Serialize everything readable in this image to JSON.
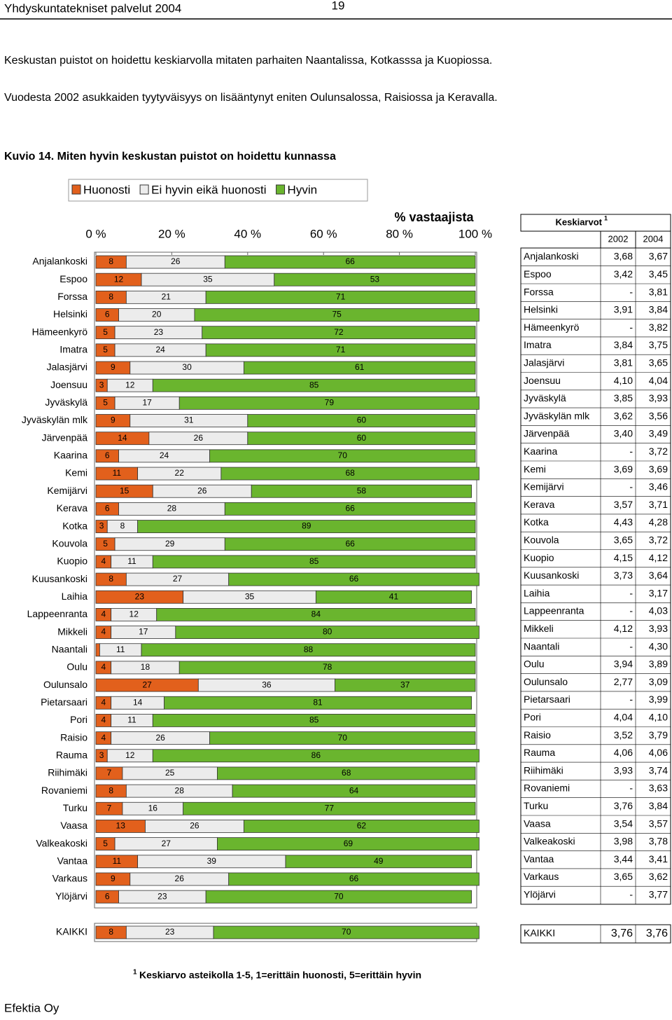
{
  "header": {
    "left": "Yhdyskuntatekniset palvelut 2004",
    "page_number": "19"
  },
  "paragraphs": [
    "Keskustan puistot on hoidettu keskiarvolla mitaten parhaiten Naantalissa, Kotkasssa ja Kuopiossa.",
    "Vuodesta 2002 asukkaiden tyytyväisyys on lisääntynyt eniten Oulunsalossa, Raisiossa ja Keravalla."
  ],
  "figure_caption": "Kuvio 14. Miten hyvin keskustan puistot on hoidettu kunnassa",
  "chart_data": {
    "type": "bar",
    "orientation": "horizontal",
    "stacked": true,
    "title": "% vastaajista",
    "categories": [
      "Anjalankoski",
      "Espoo",
      "Forssa",
      "Helsinki",
      "Hämeenkyrö",
      "Imatra",
      "Jalasjärvi",
      "Joensuu",
      "Jyväskylä",
      "Jyväskylän mlk",
      "Järvenpää",
      "Kaarina",
      "Kemi",
      "Kemijärvi",
      "Kerava",
      "Kotka",
      "Kouvola",
      "Kuopio",
      "Kuusankoski",
      "Laihia",
      "Lappeenranta",
      "Mikkeli",
      "Naantali",
      "Oulu",
      "Oulunsalo",
      "Pietarsaari",
      "Pori",
      "Raisio",
      "Rauma",
      "Riihimäki",
      "Rovaniemi",
      "Turku",
      "Vaasa",
      "Valkeakoski",
      "Vantaa",
      "Varkaus",
      "Ylöjärvi",
      "KAIKKI"
    ],
    "series": [
      {
        "name": "Huonosti",
        "color": "#e2601c",
        "values": [
          8,
          12,
          8,
          6,
          5,
          5,
          9,
          3,
          5,
          9,
          14,
          6,
          11,
          15,
          6,
          3,
          5,
          4,
          8,
          23,
          4,
          4,
          1,
          4,
          27,
          4,
          4,
          4,
          3,
          7,
          8,
          7,
          13,
          5,
          11,
          9,
          6,
          8
        ]
      },
      {
        "name": "Ei hyvin eikä huonosti",
        "color": "#ececec",
        "values": [
          26,
          35,
          21,
          20,
          23,
          24,
          30,
          12,
          17,
          31,
          26,
          24,
          22,
          26,
          28,
          8,
          29,
          11,
          27,
          35,
          12,
          17,
          11,
          18,
          36,
          14,
          11,
          26,
          12,
          25,
          28,
          16,
          26,
          27,
          39,
          26,
          23,
          23
        ]
      },
      {
        "name": "Hyvin",
        "color": "#6ab52e",
        "values": [
          66,
          53,
          71,
          75,
          72,
          71,
          61,
          85,
          79,
          60,
          60,
          70,
          68,
          58,
          66,
          89,
          66,
          85,
          66,
          41,
          84,
          80,
          88,
          78,
          37,
          81,
          85,
          70,
          86,
          68,
          64,
          77,
          62,
          69,
          49,
          66,
          70,
          70
        ]
      }
    ],
    "xlim": [
      0,
      100
    ],
    "xticks": [
      {
        "value": 0,
        "label": "0 %"
      },
      {
        "value": 20,
        "label": "20 %"
      },
      {
        "value": 40,
        "label": "40 %"
      },
      {
        "value": 60,
        "label": "60 %"
      },
      {
        "value": 80,
        "label": "80 %"
      },
      {
        "value": 100,
        "label": "100 %"
      }
    ]
  },
  "table": {
    "title": "Keskiarvot",
    "title_note": "1",
    "columns": [
      "2002",
      "2004"
    ],
    "rows": [
      [
        "Anjalankoski",
        "3,68",
        "3,67"
      ],
      [
        "Espoo",
        "3,42",
        "3,45"
      ],
      [
        "Forssa",
        "-",
        "3,81"
      ],
      [
        "Helsinki",
        "3,91",
        "3,84"
      ],
      [
        "Hämeenkyrö",
        "-",
        "3,82"
      ],
      [
        "Imatra",
        "3,84",
        "3,75"
      ],
      [
        "Jalasjärvi",
        "3,81",
        "3,65"
      ],
      [
        "Joensuu",
        "4,10",
        "4,04"
      ],
      [
        "Jyväskylä",
        "3,85",
        "3,93"
      ],
      [
        "Jyväskylän mlk",
        "3,62",
        "3,56"
      ],
      [
        "Järvenpää",
        "3,40",
        "3,49"
      ],
      [
        "Kaarina",
        "-",
        "3,72"
      ],
      [
        "Kemi",
        "3,69",
        "3,69"
      ],
      [
        "Kemijärvi",
        "-",
        "3,46"
      ],
      [
        "Kerava",
        "3,57",
        "3,71"
      ],
      [
        "Kotka",
        "4,43",
        "4,28"
      ],
      [
        "Kouvola",
        "3,65",
        "3,72"
      ],
      [
        "Kuopio",
        "4,15",
        "4,12"
      ],
      [
        "Kuusankoski",
        "3,73",
        "3,64"
      ],
      [
        "Laihia",
        "-",
        "3,17"
      ],
      [
        "Lappeenranta",
        "-",
        "4,03"
      ],
      [
        "Mikkeli",
        "4,12",
        "3,93"
      ],
      [
        "Naantali",
        "-",
        "4,30"
      ],
      [
        "Oulu",
        "3,94",
        "3,89"
      ],
      [
        "Oulunsalo",
        "2,77",
        "3,09"
      ],
      [
        "Pietarsaari",
        "-",
        "3,99"
      ],
      [
        "Pori",
        "4,04",
        "4,10"
      ],
      [
        "Raisio",
        "3,52",
        "3,79"
      ],
      [
        "Rauma",
        "4,06",
        "4,06"
      ],
      [
        "Riihimäki",
        "3,93",
        "3,74"
      ],
      [
        "Rovaniemi",
        "-",
        "3,63"
      ],
      [
        "Turku",
        "3,76",
        "3,84"
      ],
      [
        "Vaasa",
        "3,54",
        "3,57"
      ],
      [
        "Valkeakoski",
        "3,98",
        "3,78"
      ],
      [
        "Vantaa",
        "3,44",
        "3,41"
      ],
      [
        "Varkaus",
        "3,65",
        "3,62"
      ],
      [
        "Ylöjärvi",
        "-",
        "3,77"
      ],
      [
        "KAIKKI",
        "3,76",
        "3,76"
      ]
    ]
  },
  "footnote": {
    "mark": "1",
    "text": "Keskiarvo asteikolla 1-5, 1=erittäin huonosti, 5=erittäin hyvin"
  },
  "footer": "Efektia Oy"
}
